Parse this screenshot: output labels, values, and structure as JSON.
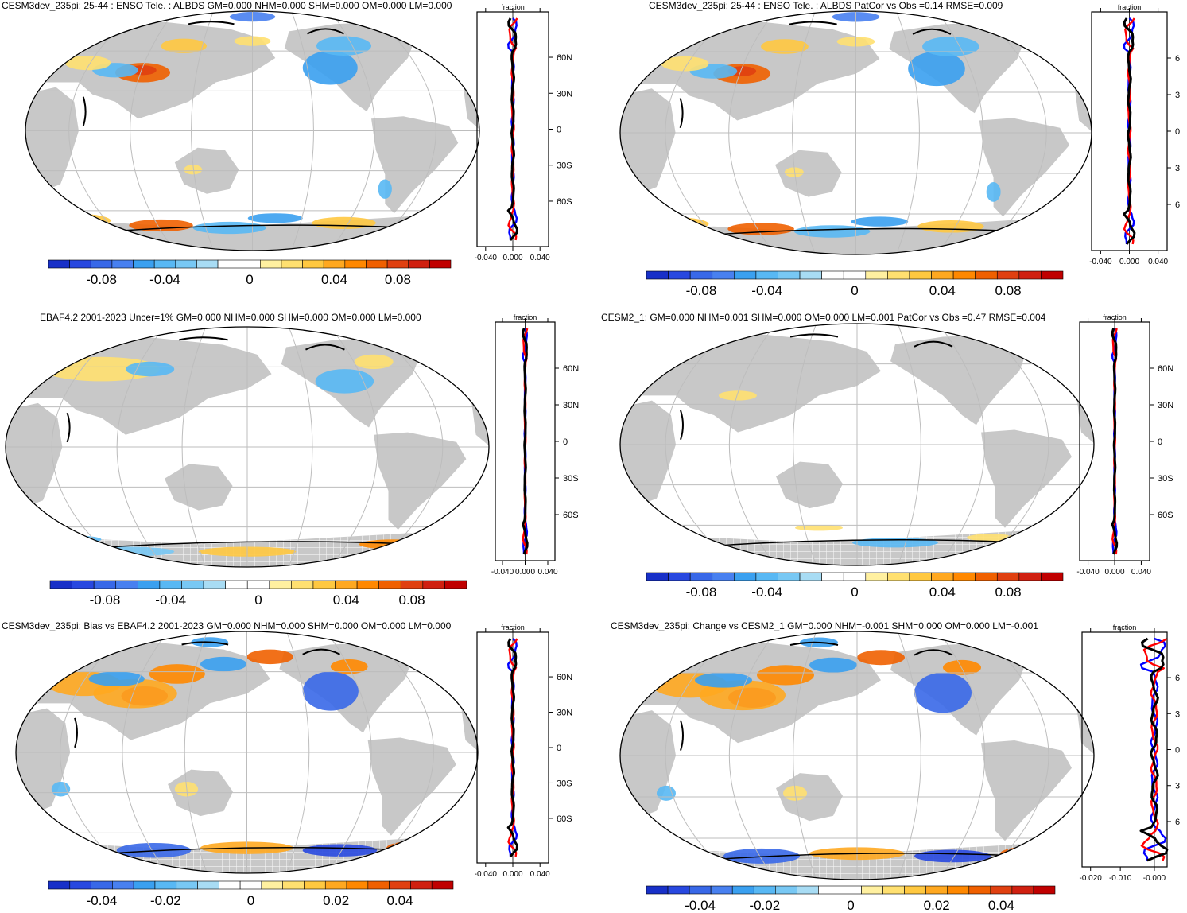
{
  "colors": {
    "land": "#c8c8c8",
    "ocean": "#ffffff",
    "grid": "#bdbdbd",
    "coast": "#000000",
    "hatch": "#ffffff",
    "series_colors": [
      "#0000ff",
      "#ff0000",
      "#000000"
    ],
    "colorbar_stops": [
      "#1830c8",
      "#2848e0",
      "#3868e8",
      "#4880f0",
      "#3aa0f0",
      "#58b8f4",
      "#78c8f4",
      "#a8dcf4",
      "#ffffff",
      "#ffffff",
      "#fff0a0",
      "#ffe070",
      "#ffc840",
      "#ffa820",
      "#ff8800",
      "#f06000",
      "#e04010",
      "#d02010",
      "#c00000"
    ]
  },
  "panels": [
    {
      "id": "p1",
      "title": "CESM3dev_235pi: 25-44 : ENSO Tele. : ALBDS GM=0.000 NHM=0.000 SHM=0.000 OM=0.000 LM=0.000",
      "colorbar_ticks": [
        "-0.08",
        "-0.04",
        "0",
        "0.04",
        "0.08"
      ],
      "zonal": {
        "label": "fraction",
        "ticks": [
          "-0.040",
          "0.000",
          "0.040"
        ],
        "lat_labels": [
          "60N",
          "30N",
          "0",
          "30S",
          "60S"
        ]
      }
    },
    {
      "id": "p2",
      "title": "CESM3dev_235pi: 25-44 : ENSO Tele. : ALBDS PatCor vs Obs =0.14 RMSE=0.009",
      "colorbar_ticks": [
        "-0.08",
        "-0.04",
        "0",
        "0.04",
        "0.08"
      ],
      "zonal": {
        "label": "fraction",
        "ticks": [
          "-0.040",
          "0.000",
          "0.040"
        ],
        "lat_labels": [
          "6",
          "3",
          "0",
          "3",
          "6"
        ]
      }
    },
    {
      "id": "p3",
      "title": "EBAF4.2 2001-2023 Uncer=1% GM=0.000 NHM=0.000 SHM=0.000 OM=0.000 LM=0.000",
      "colorbar_ticks": [
        "-0.08",
        "-0.04",
        "0",
        "0.04",
        "0.08"
      ],
      "zonal": {
        "label": "fraction",
        "ticks": [
          "-0.040",
          "0.000",
          "0.040"
        ],
        "lat_labels": [
          "60N",
          "30N",
          "0",
          "30S",
          "60S"
        ]
      }
    },
    {
      "id": "p4",
      "title": "CESM2_1: GM=0.000 NHM=0.001 SHM=0.000 OM=0.000 LM=0.001 PatCor vs Obs =0.47 RMSE=0.004",
      "colorbar_ticks": [
        "-0.08",
        "-0.04",
        "0",
        "0.04",
        "0.08"
      ],
      "zonal": {
        "label": "fraction",
        "ticks": [
          "-0.040",
          "0.000",
          "0.040"
        ],
        "lat_labels": [
          "60N",
          "30N",
          "0",
          "30S",
          "60S"
        ]
      }
    },
    {
      "id": "p5",
      "title": "CESM3dev_235pi: Bias vs EBAF4.2 2001-2023 GM=0.000 NHM=0.000 SHM=0.000 OM=0.000 LM=0.000",
      "colorbar_ticks": [
        "-0.04",
        "-0.02",
        "0",
        "0.02",
        "0.04"
      ],
      "zonal": {
        "label": "fraction",
        "ticks": [
          "-0.040",
          "0.000",
          "0.040"
        ],
        "lat_labels": [
          "60N",
          "30N",
          "0",
          "30S",
          "60S"
        ]
      }
    },
    {
      "id": "p6",
      "title": "CESM3dev_235pi: Change vs CESM2_1 GM=0.000 NHM=-0.001 SHM=0.000 OM=0.000 LM=-0.001",
      "colorbar_ticks": [
        "-0.04",
        "-0.02",
        "0",
        "0.02",
        "0.04"
      ],
      "zonal": {
        "label": "fraction",
        "ticks": [
          "-0.020",
          "-0.010",
          "-0.000"
        ],
        "lat_labels": [
          "6",
          "3",
          "0",
          "3",
          "6"
        ]
      }
    }
  ],
  "chart_data": [
    {
      "type": "heatmap",
      "title": "CESM3dev_235pi: 25-44 : ENSO Tele. : ALBDS GM=0.000 NHM=0.000 SHM=0.000 OM=0.000 LM=0.000",
      "colorbar_range": [
        -0.1,
        0.1
      ],
      "colorbar_ticks": [
        -0.08,
        -0.04,
        0,
        0.04,
        0.08
      ]
    },
    {
      "type": "line",
      "title": "fraction",
      "xlim": [
        -0.06,
        0.06
      ],
      "x_ticks": [
        -0.04,
        0.0,
        0.04
      ],
      "ylim": [
        -90,
        90
      ],
      "y_ticks": [
        60,
        30,
        0,
        -30,
        -60
      ],
      "series": [
        "zonal mean (blue)",
        "zonal mean (red)",
        "zonal mean (black)"
      ]
    },
    {
      "type": "heatmap",
      "title": "CESM3dev_235pi: 25-44 : ENSO Tele. : ALBDS PatCor vs Obs =0.14 RMSE=0.009",
      "colorbar_range": [
        -0.1,
        0.1
      ],
      "colorbar_ticks": [
        -0.08,
        -0.04,
        0,
        0.04,
        0.08
      ]
    },
    {
      "type": "heatmap",
      "title": "EBAF4.2 2001-2023 Uncer=1% GM=0.000 NHM=0.000 SHM=0.000 OM=0.000 LM=0.000",
      "colorbar_range": [
        -0.1,
        0.1
      ],
      "colorbar_ticks": [
        -0.08,
        -0.04,
        0,
        0.04,
        0.08
      ]
    },
    {
      "type": "heatmap",
      "title": "CESM2_1: GM=0.000 NHM=0.001 SHM=0.000 OM=0.000 LM=0.001 PatCor vs Obs =0.47 RMSE=0.004",
      "colorbar_range": [
        -0.1,
        0.1
      ],
      "colorbar_ticks": [
        -0.08,
        -0.04,
        0,
        0.04,
        0.08
      ]
    },
    {
      "type": "heatmap",
      "title": "CESM3dev_235pi: Bias vs EBAF4.2 2001-2023 GM=0.000 NHM=0.000 SHM=0.000 OM=0.000 LM=0.000",
      "colorbar_range": [
        -0.05,
        0.05
      ],
      "colorbar_ticks": [
        -0.04,
        -0.02,
        0,
        0.02,
        0.04
      ]
    },
    {
      "type": "heatmap",
      "title": "CESM3dev_235pi: Change vs CESM2_1 GM=0.000 NHM=-0.001 SHM=0.000 OM=0.000 LM=-0.001",
      "colorbar_range": [
        -0.05,
        0.05
      ],
      "colorbar_ticks": [
        -0.04,
        -0.02,
        0,
        0.02,
        0.04
      ]
    },
    {
      "type": "line",
      "title": "fraction",
      "xlim": [
        -0.025,
        0.005
      ],
      "x_ticks": [
        -0.02,
        -0.01,
        0.0
      ],
      "ylim": [
        -90,
        90
      ],
      "series": [
        "zonal mean (blue)",
        "zonal mean (red)",
        "zonal mean (black)"
      ]
    }
  ]
}
